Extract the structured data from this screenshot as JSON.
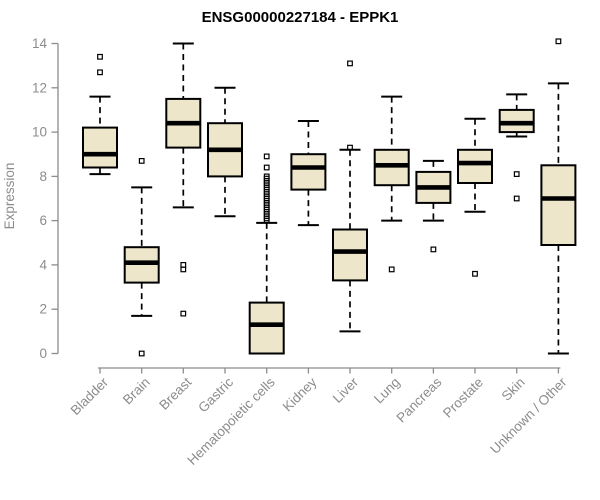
{
  "colors": {
    "box_fill": "#EDE6CB",
    "box_stroke": "#000000",
    "axis": "#8C8C8C",
    "text": "#8C8C8C",
    "title": "#000000",
    "background": "#FFFFFF"
  },
  "chart_data": {
    "type": "boxplot",
    "title": "ENSG00000227184 - EPPK1",
    "ylabel": "Expression",
    "xlabel": "",
    "ylim": [
      0,
      14
    ],
    "yticks": [
      0,
      2,
      4,
      6,
      8,
      10,
      12,
      14
    ],
    "grid": false,
    "legend": "none",
    "categories": [
      "Bladder",
      "Brain",
      "Breast",
      "Gastric",
      "Hematopoietic cells",
      "Kidney",
      "Liver",
      "Lung",
      "Pancreas",
      "Prostate",
      "Skin",
      "Unknown / Other"
    ],
    "boxes": [
      {
        "category": "Bladder",
        "whisker_low": 8.1,
        "q1": 8.4,
        "median": 9.0,
        "q3": 10.2,
        "whisker_high": 11.6,
        "outliers": [
          13.4,
          12.7
        ]
      },
      {
        "category": "Brain",
        "whisker_low": 1.7,
        "q1": 3.2,
        "median": 4.1,
        "q3": 4.8,
        "whisker_high": 7.5,
        "outliers": [
          8.7,
          0.0
        ]
      },
      {
        "category": "Breast",
        "whisker_low": 6.6,
        "q1": 9.3,
        "median": 10.4,
        "q3": 11.5,
        "whisker_high": 14.0,
        "outliers": [
          4.0,
          3.8,
          1.8
        ]
      },
      {
        "category": "Gastric",
        "whisker_low": 6.2,
        "q1": 8.0,
        "median": 9.2,
        "q3": 10.4,
        "whisker_high": 12.0,
        "outliers": []
      },
      {
        "category": "Hematopoietic cells",
        "whisker_low": 0.0,
        "q1": 0.0,
        "median": 1.3,
        "q3": 2.3,
        "whisker_high": 5.9,
        "outliers": [
          8.9,
          8.4,
          8.0,
          7.9,
          7.8,
          7.7,
          7.6,
          7.5,
          7.4,
          7.3,
          7.2,
          7.1,
          7.0,
          6.9,
          6.8,
          6.7,
          6.6,
          6.5,
          6.4,
          6.3,
          6.2,
          6.1,
          6.0
        ]
      },
      {
        "category": "Kidney",
        "whisker_low": 5.8,
        "q1": 7.4,
        "median": 8.4,
        "q3": 9.0,
        "whisker_high": 10.5,
        "outliers": []
      },
      {
        "category": "Liver",
        "whisker_low": 1.0,
        "q1": 3.3,
        "median": 4.6,
        "q3": 5.6,
        "whisker_high": 9.2,
        "outliers": [
          13.1,
          9.3
        ]
      },
      {
        "category": "Lung",
        "whisker_low": 6.0,
        "q1": 7.6,
        "median": 8.5,
        "q3": 9.2,
        "whisker_high": 11.6,
        "outliers": [
          3.8
        ]
      },
      {
        "category": "Pancreas",
        "whisker_low": 6.0,
        "q1": 6.8,
        "median": 7.5,
        "q3": 8.2,
        "whisker_high": 8.7,
        "outliers": [
          4.7
        ]
      },
      {
        "category": "Prostate",
        "whisker_low": 6.4,
        "q1": 7.7,
        "median": 8.6,
        "q3": 9.2,
        "whisker_high": 10.6,
        "outliers": [
          3.6
        ]
      },
      {
        "category": "Skin",
        "whisker_low": 9.8,
        "q1": 10.0,
        "median": 10.4,
        "q3": 11.0,
        "whisker_high": 11.7,
        "outliers": [
          8.1,
          7.0
        ]
      },
      {
        "category": "Unknown / Other",
        "whisker_low": 0.0,
        "q1": 4.9,
        "median": 7.0,
        "q3": 8.5,
        "whisker_high": 12.2,
        "outliers": [
          14.1
        ]
      }
    ]
  }
}
